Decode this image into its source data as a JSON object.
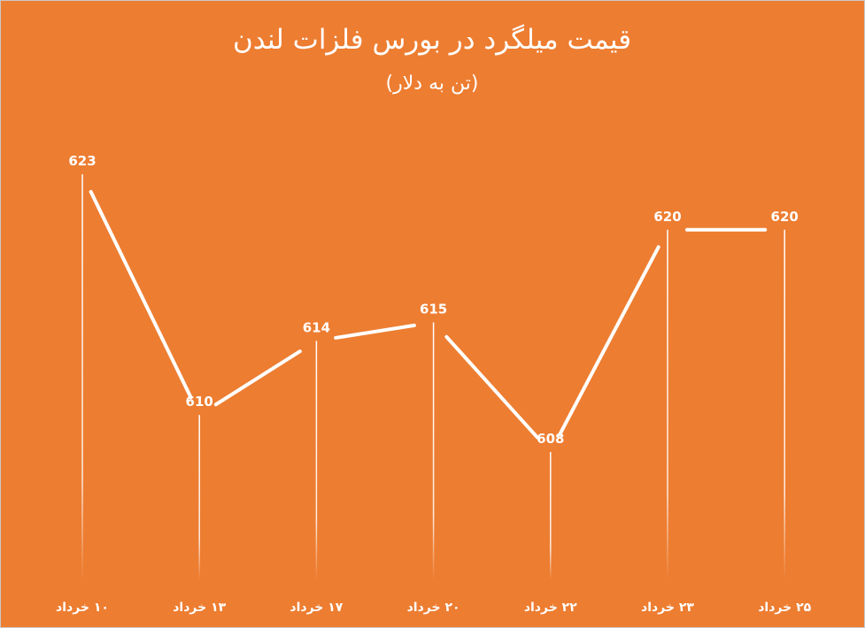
{
  "colors": {
    "background": "#ED7D31",
    "line": "#FFFFFF",
    "text": "#FFFFFF"
  },
  "chart_data": {
    "type": "line",
    "title": "قیمت میلگرد در بورس فلزات لندن",
    "subtitle": "(تن به دلار)",
    "categories": [
      "۱۰ خرداد",
      "۱۳ خرداد",
      "۱۷ خرداد",
      "۲۰ خرداد",
      "۲۲ خرداد",
      "۲۳ خرداد",
      "۲۵ خرداد"
    ],
    "series": [
      {
        "values": [
          623,
          610,
          614,
          615,
          608,
          620,
          620
        ]
      }
    ],
    "ylim": [
      608,
      623
    ],
    "grid": false,
    "legend": "none",
    "data_labels": true,
    "drop_lines": true
  }
}
